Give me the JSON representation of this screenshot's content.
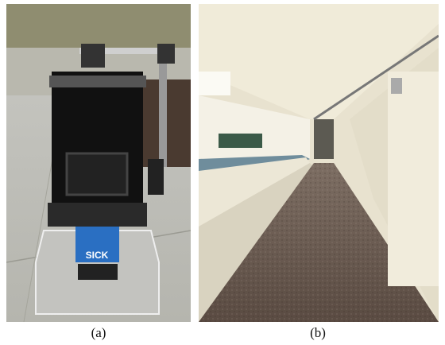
{
  "figure": {
    "panels": [
      {
        "caption": "(a)",
        "sensor_label": "SICK"
      },
      {
        "caption": "(b)"
      }
    ]
  }
}
